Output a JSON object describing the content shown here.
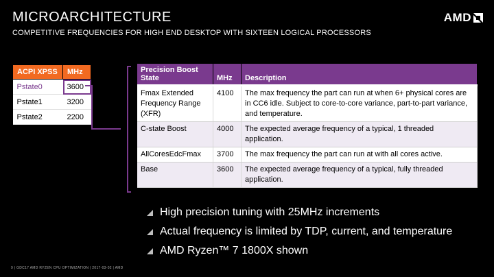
{
  "title": "MICROARCHITECTURE",
  "subtitle": "COMPETITIVE FREQUENCIES FOR HIGH END DESKTOP WITH SIXTEEN LOGICAL PROCESSORS",
  "logo_text": "AMD",
  "acpi_table": {
    "headers": [
      "ACPI XPSS",
      "MHz"
    ],
    "rows": [
      {
        "state": "Pstate0",
        "mhz": "3600"
      },
      {
        "state": "Pstate1",
        "mhz": "3200"
      },
      {
        "state": "Pstate2",
        "mhz": "2200"
      }
    ]
  },
  "pb_table": {
    "headers": [
      "Precision Boost State",
      "MHz",
      "Description"
    ],
    "rows": [
      {
        "state": "Fmax Extended Frequency Range (XFR)",
        "mhz": "4100",
        "desc": "The max frequency the part can run at when 6+ physical cores are in CC6 idle. Subject to core-to-core variance, part-to-part variance, and temperature."
      },
      {
        "state": "C-state Boost",
        "mhz": "4000",
        "desc": "The expected average frequency of a typical, 1 threaded application."
      },
      {
        "state": "AllCoresEdcFmax",
        "mhz": "3700",
        "desc": "The max frequency the part can run at with all cores active."
      },
      {
        "state": "Base",
        "mhz": "3600",
        "desc": "The expected average frequency of a typical, fully threaded application."
      }
    ]
  },
  "bullets": [
    "High precision tuning with 25MHz increments",
    "Actual frequency is limited by TDP, current, and temperature",
    "AMD Ryzen™ 7 1800X shown"
  ],
  "footer": "9  |  GDC17 AMD RYZEN CPU OPTIMIZATION  |  2017-03-02  |  AMD",
  "colors": {
    "accent_purple": "#7a3a8e",
    "accent_orange": "#f26a21",
    "background": "#000000"
  }
}
